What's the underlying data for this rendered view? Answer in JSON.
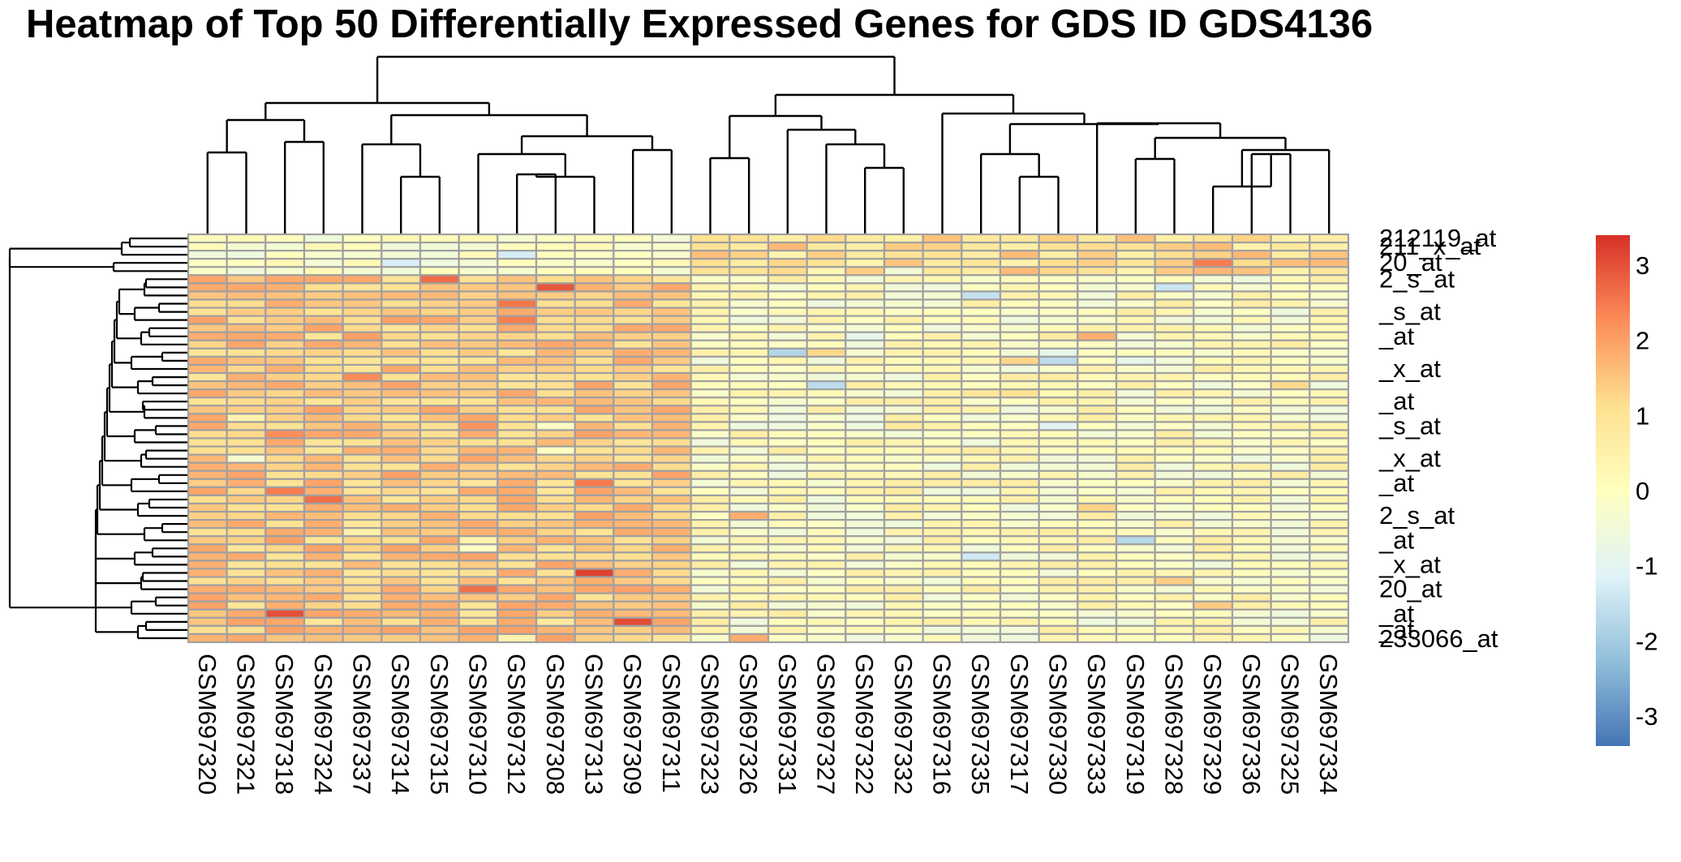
{
  "chart_data": {
    "type": "heatmap",
    "title": "Heatmap of Top 50 Differentially Expressed Genes for GDS ID GDS4136",
    "columns": [
      "GSM697320",
      "GSM697321",
      "GSM697318",
      "GSM697324",
      "GSM697337",
      "GSM697314",
      "GSM697315",
      "GSM697310",
      "GSM697312",
      "GSM697308",
      "GSM697313",
      "GSM697309",
      "GSM697311",
      "GSM697323",
      "GSM697326",
      "GSM697331",
      "GSM697327",
      "GSM697322",
      "GSM697332",
      "GSM697316",
      "GSM697335",
      "GSM697317",
      "GSM697330",
      "GSM697333",
      "GSM697319",
      "GSM697328",
      "GSM697329",
      "GSM697336",
      "GSM697325",
      "GSM697334"
    ],
    "row_labels_legible": [
      "212119_at",
      "211_x_at",
      "20_at",
      "2_s_at",
      "_s_at",
      "_at",
      "_x_at",
      "233066_at"
    ],
    "n_rows": 50,
    "value_range": [
      -3.4,
      3.4
    ],
    "legend": {
      "ticks": [
        3,
        2,
        1,
        0,
        -1,
        -2,
        -3
      ],
      "tick_labels": [
        "3",
        "2",
        "1",
        "0",
        "-1",
        "-2",
        "-3"
      ],
      "placement": "right",
      "colors": [
        "#4575b4",
        "#91bfdb",
        "#e0f3f8",
        "#ffffbf",
        "#fee090",
        "#fc8d59",
        "#d73027"
      ]
    },
    "grid_color": "#a0a0a0",
    "dendrogram_color": "#000000"
  }
}
